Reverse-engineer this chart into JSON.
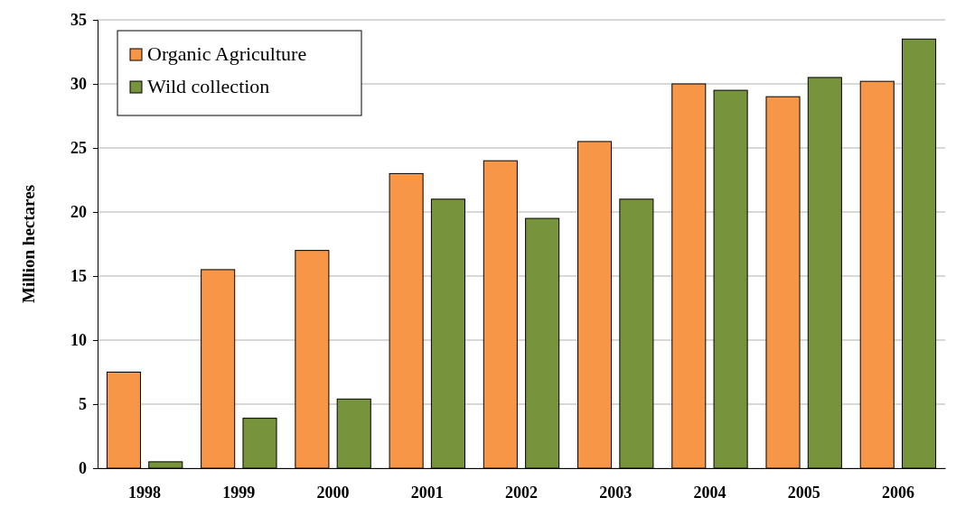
{
  "chart_data": {
    "type": "bar",
    "ylabel": "Million hectares",
    "categories": [
      "1998",
      "1999",
      "2000",
      "2001",
      "2002",
      "2003",
      "2004",
      "2005",
      "2006"
    ],
    "series": [
      {
        "name": "Organic Agriculture",
        "color": "#f79646",
        "values": [
          7.5,
          15.5,
          17,
          23,
          24,
          25.5,
          30,
          29,
          30.2
        ]
      },
      {
        "name": "Wild collection",
        "color": "#77933c",
        "values": [
          0.5,
          3.9,
          5.4,
          21,
          19.5,
          21,
          29.5,
          30.5,
          33.5
        ]
      }
    ],
    "ylim": [
      0,
      35
    ],
    "yticks": [
      0,
      5,
      10,
      15,
      20,
      25,
      30,
      35
    ],
    "grid": "y",
    "legend": "top left"
  }
}
